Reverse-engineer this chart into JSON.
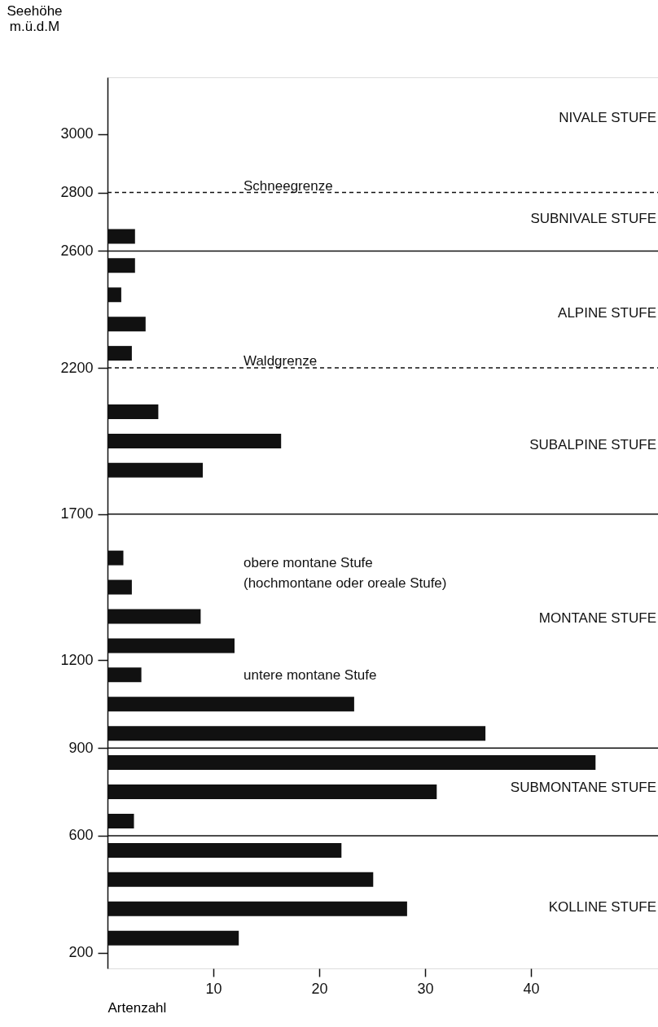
{
  "chart_data": {
    "type": "bar",
    "orientation": "horizontal",
    "color": "#111111",
    "ylabel": "Seehöhe\nm.ü.d.M",
    "xlabel": "Artenzahl",
    "x": [
      2650,
      2550,
      2450,
      2350,
      2250,
      2050,
      1950,
      1850,
      1550,
      1450,
      1350,
      1250,
      1150,
      1050,
      950,
      850,
      750,
      650,
      550,
      450,
      350,
      250
    ],
    "values": [
      2.6,
      2.6,
      1.3,
      3.6,
      2.3,
      4.8,
      16.4,
      9.0,
      1.5,
      2.3,
      8.8,
      12.0,
      3.2,
      23.3,
      35.7,
      46.1,
      31.1,
      2.5,
      22.1,
      25.1,
      28.3,
      12.4
    ],
    "xlim": [
      0,
      52
    ],
    "xticks": [
      10,
      20,
      30,
      40
    ],
    "ylim": [
      160,
      3180
    ],
    "yticks": [
      200,
      600,
      900,
      1200,
      1700,
      2200,
      2600,
      2800,
      3000
    ],
    "grid": false,
    "ref_lines": [
      {
        "axis": "y",
        "value": 2800,
        "label": "Schneegrenze",
        "line_style": "dashed"
      },
      {
        "axis": "y",
        "value": 2600,
        "label": null,
        "line_style": "solid"
      },
      {
        "axis": "y",
        "value": 2200,
        "label": "Waldgrenze",
        "line_style": "dashed"
      },
      {
        "axis": "y",
        "value": 1700,
        "label": null,
        "line_style": "solid"
      },
      {
        "axis": "y",
        "value": 900,
        "label": null,
        "line_style": "solid"
      },
      {
        "axis": "y",
        "value": 600,
        "label": null,
        "line_style": "solid"
      }
    ],
    "annotations": [
      "NIVALE STUFE",
      "SUBNIVALE STUFE",
      "ALPINE STUFE",
      "SUBALPINE STUFE",
      "obere montane Stufe",
      "(hochmontane oder oreale Stufe)",
      "MONTANE STUFE",
      "untere montane Stufe",
      "SUBMONTANE STUFE",
      "KOLLINE STUFE"
    ]
  }
}
